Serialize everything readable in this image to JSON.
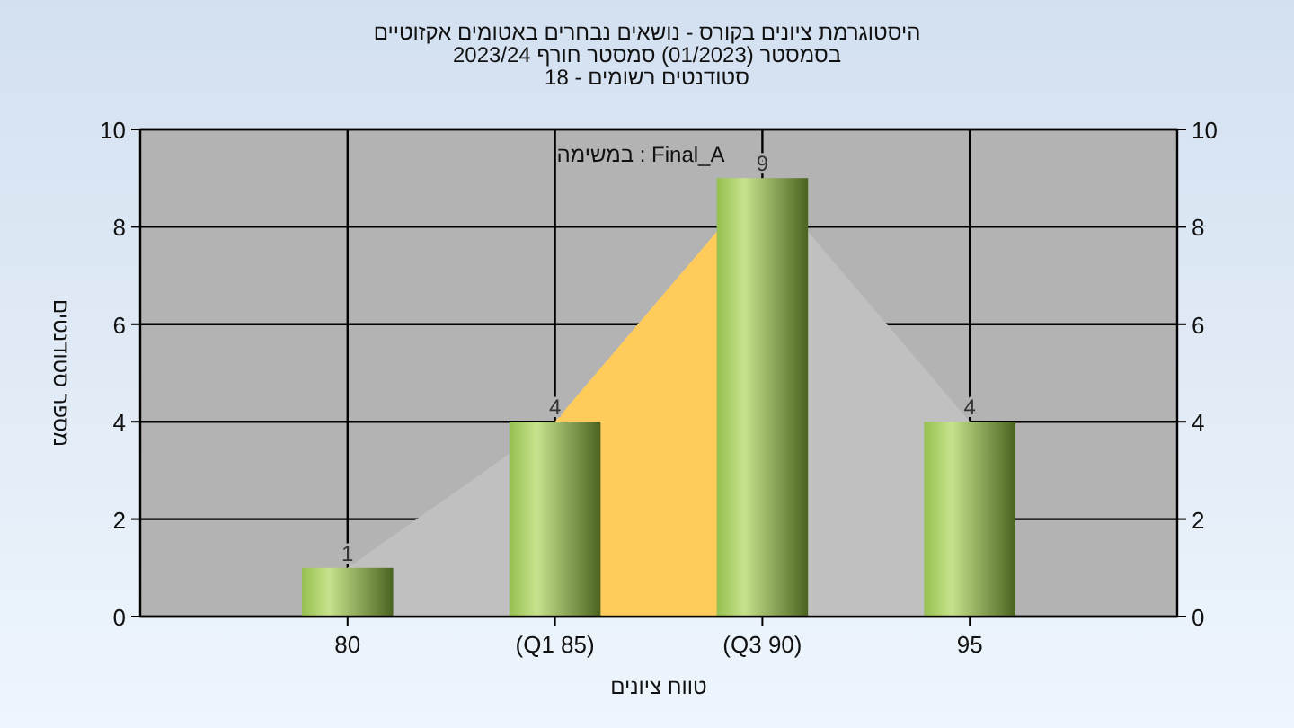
{
  "chart_data": {
    "type": "bar",
    "title": "היסטוגרמת ציונים בקורס - נושאים נבחרים באטומים אקזוטיים",
    "subtitle": "בסמסטר (01/2023) סמסטר חורף 2023/24\nסטודנטים רשומים - 18",
    "xlabel": "טווח ציונים",
    "ylabel": "מספר סטודנטים",
    "annotations": [
      "במשימה : Final_A"
    ],
    "categories": [
      "80",
      "(Q1 85)",
      "(Q3 90)",
      "95"
    ],
    "series": [
      {
        "type": "area",
        "color": "#c0c0c0",
        "values": [
          1,
          4,
          9,
          4
        ]
      },
      {
        "type": "area",
        "color": "#ffcc5c",
        "values": [
          null,
          4,
          9,
          null
        ]
      },
      {
        "color": "#95bf4f",
        "values": [
          1,
          4,
          9,
          4
        ],
        "value_labels": [
          "1",
          "4",
          "9",
          "4"
        ]
      }
    ],
    "ylim": [
      0,
      10
    ],
    "yticks": [
      0,
      2,
      4,
      6,
      8,
      10
    ],
    "y2lim": [
      0,
      10
    ],
    "y2ticks": [
      0,
      2,
      4,
      6,
      8,
      10
    ],
    "grid": true
  }
}
